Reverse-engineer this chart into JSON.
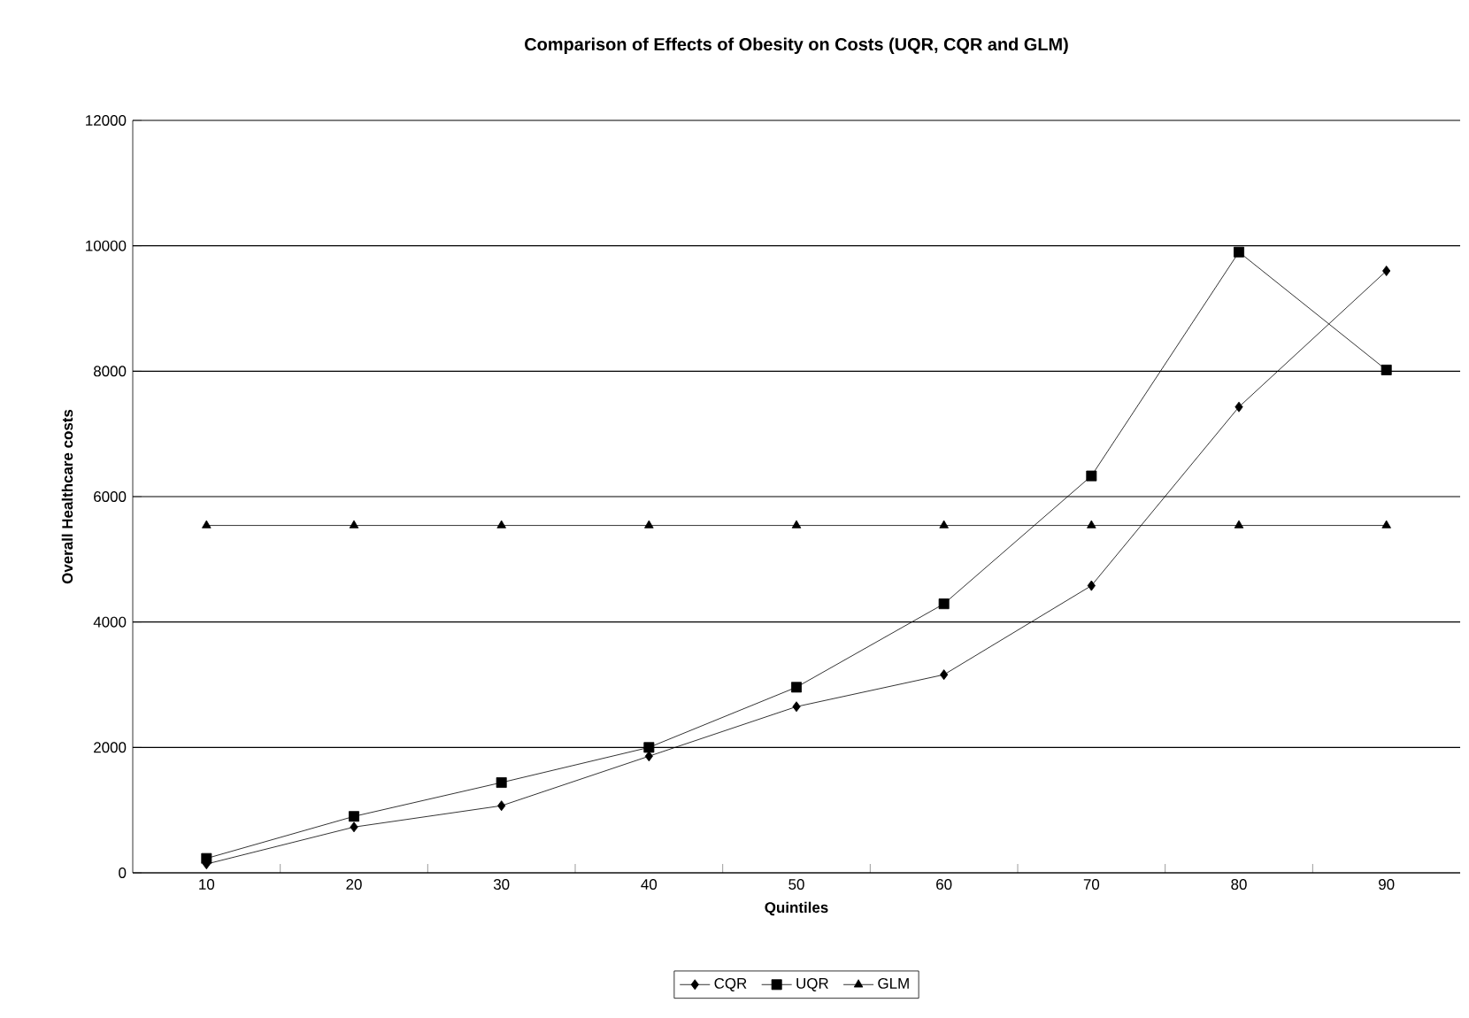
{
  "chart_data": {
    "type": "line",
    "title": "Comparison of Effects of Obesity on Costs (UQR, CQR and GLM)",
    "xlabel": "Quintiles",
    "ylabel": "Overall Healthcare costs",
    "categories": [
      "10",
      "20",
      "30",
      "40",
      "50",
      "60",
      "70",
      "80",
      "90"
    ],
    "series": [
      {
        "name": "CQR",
        "color": "#000000",
        "marker": "diamond",
        "values": [
          140,
          730,
          1070,
          1860,
          2650,
          3160,
          4580,
          7430,
          9600
        ]
      },
      {
        "name": "UQR",
        "color": "#000000",
        "marker": "square",
        "values": [
          230,
          900,
          1440,
          2000,
          2960,
          4290,
          6330,
          9900,
          8020
        ]
      },
      {
        "name": "GLM",
        "color": "#000000",
        "marker": "triangle",
        "values": [
          5540,
          5540,
          5540,
          5540,
          5540,
          5540,
          5540,
          5540,
          5540
        ]
      }
    ],
    "ylim": [
      0,
      12000
    ],
    "yticks": [
      0,
      2000,
      4000,
      6000,
      8000,
      10000,
      12000
    ],
    "grid": "y",
    "legend": "bottom",
    "line_style": "solid"
  }
}
